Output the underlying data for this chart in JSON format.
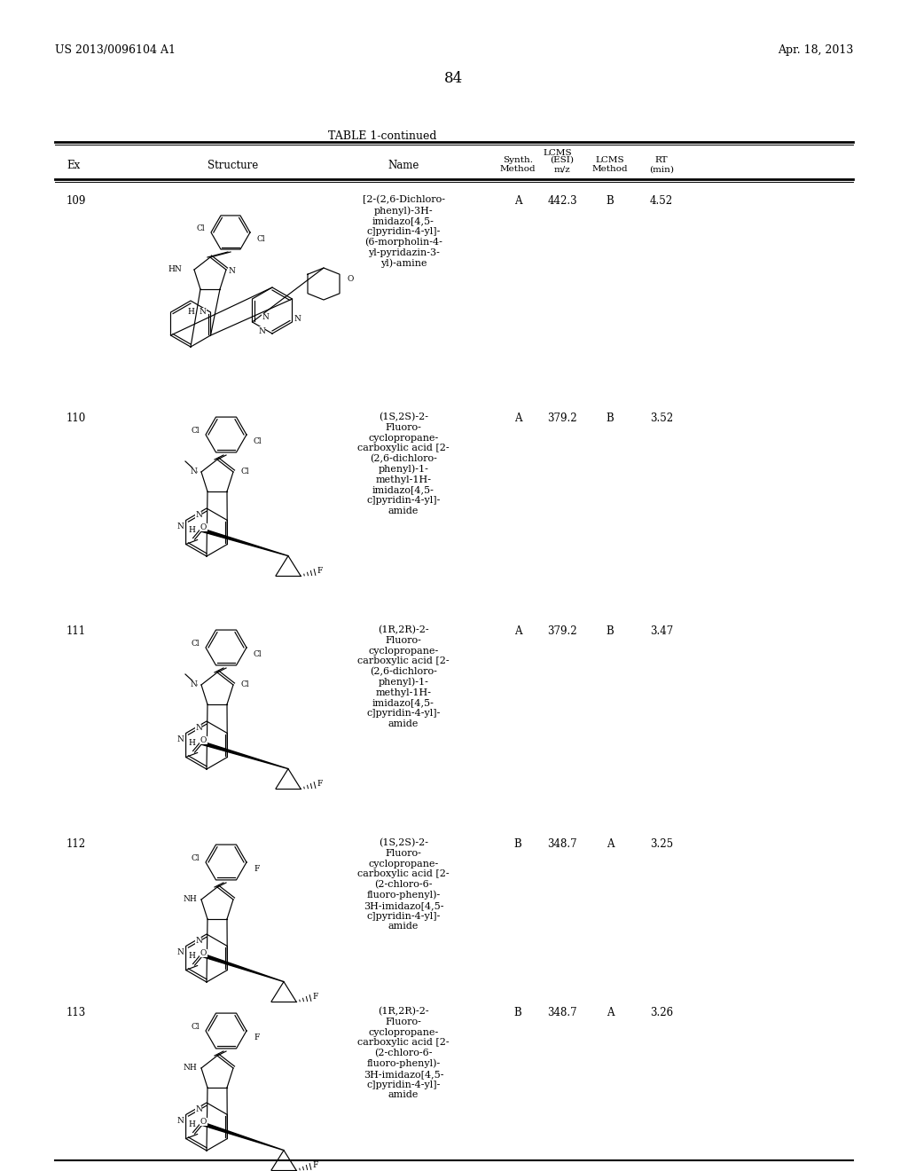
{
  "page_header_left": "US 2013/0096104 A1",
  "page_header_right": "Apr. 18, 2013",
  "page_number": "84",
  "table_title": "TABLE 1-continued",
  "rows": [
    {
      "ex": "109",
      "name": "[2-(2,6-Dichloro-\nphenyl)-3H-\nimidazo[4,5-\nc]pyridin-4-yl]-\n(6-morpholin-4-\nyl-pyridazin-3-\nyl)-amine",
      "synth_method": "A",
      "lcms_mz": "442.3",
      "lcms_method": "B",
      "rt": "4.52"
    },
    {
      "ex": "110",
      "name": "(1S,2S)-2-\nFluoro-\ncyclopropane-\ncarboxylic acid [2-\n(2,6-dichloro-\nphenyl)-1-\nmethyl-1H-\nimidazo[4,5-\nc]pyridin-4-yl]-\namide",
      "synth_method": "A",
      "lcms_mz": "379.2",
      "lcms_method": "B",
      "rt": "3.52"
    },
    {
      "ex": "111",
      "name": "(1R,2R)-2-\nFluoro-\ncyclopropane-\ncarboxylic acid [2-\n(2,6-dichloro-\nphenyl)-1-\nmethyl-1H-\nimidazo[4,5-\nc]pyridin-4-yl]-\namide",
      "synth_method": "A",
      "lcms_mz": "379.2",
      "lcms_method": "B",
      "rt": "3.47"
    },
    {
      "ex": "112",
      "name": "(1S,2S)-2-\nFluoro-\ncyclopropane-\ncarboxylic acid [2-\n(2-chloro-6-\nfluoro-phenyl)-\n3H-imidazo[4,5-\nc]pyridin-4-yl]-\namide",
      "synth_method": "B",
      "lcms_mz": "348.7",
      "lcms_method": "A",
      "rt": "3.25"
    },
    {
      "ex": "113",
      "name": "(1R,2R)-2-\nFluoro-\ncyclopropane-\ncarboxylic acid [2-\n(2-chloro-6-\nfluoro-phenyl)-\n3H-imidazo[4,5-\nc]pyridin-4-yl]-\namide",
      "synth_method": "B",
      "lcms_mz": "348.7",
      "lcms_method": "A",
      "rt": "3.26"
    }
  ],
  "bg_color": "#ffffff",
  "font_size_body": 8.5,
  "font_size_header": 8.5,
  "font_size_title": 9,
  "font_size_page": 9
}
